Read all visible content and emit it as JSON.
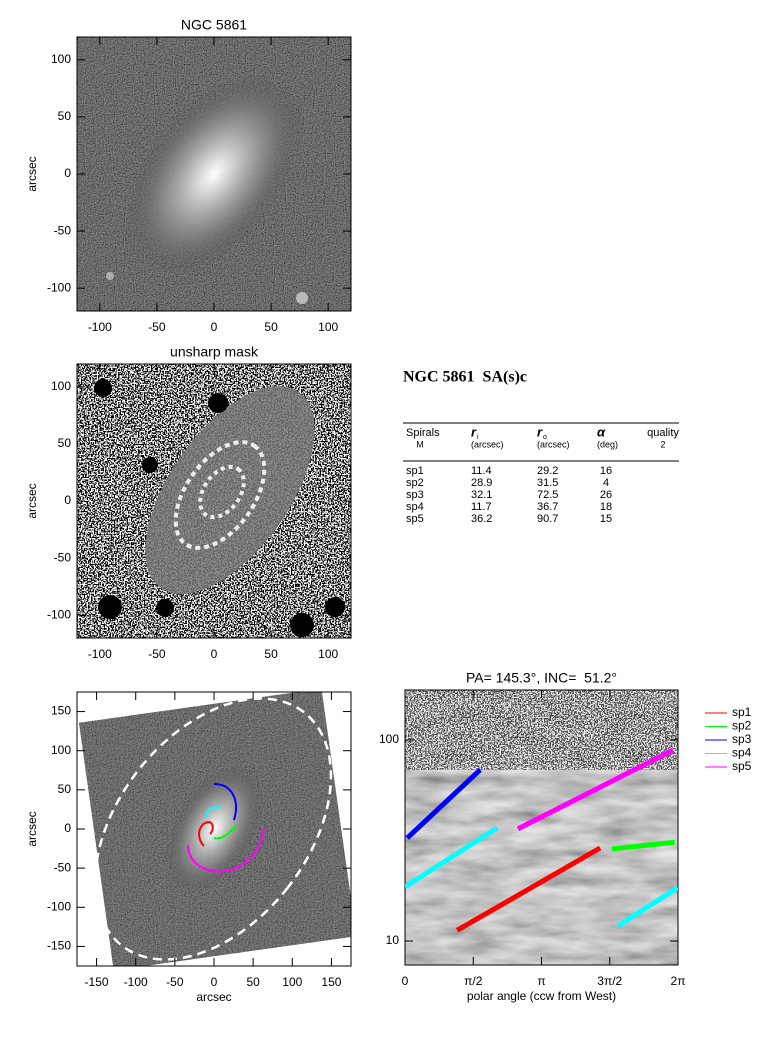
{
  "chart_data": [
    {
      "type": "image",
      "title": "NGC 5861",
      "ylabel": "arcsec",
      "xlim": [
        -120,
        120
      ],
      "ylim": [
        -120,
        120
      ],
      "xticks": [
        -100,
        -50,
        0,
        50,
        100
      ],
      "yticks": [
        -100,
        -50,
        0,
        50,
        100
      ]
    },
    {
      "type": "image",
      "title": "unsharp mask",
      "ylabel": "arcsec",
      "xlim": [
        -120,
        120
      ],
      "ylim": [
        -120,
        120
      ],
      "xticks": [
        -100,
        -50,
        0,
        50,
        100
      ],
      "yticks": [
        -100,
        -50,
        0,
        50,
        100
      ]
    },
    {
      "type": "image",
      "xlabel": "arcsec",
      "ylabel": "arcsec",
      "xlim": [
        -175,
        175
      ],
      "ylim": [
        -175,
        175
      ],
      "xticks": [
        -150,
        -100,
        -50,
        0,
        50,
        100,
        150
      ],
      "yticks": [
        -150,
        -100,
        -50,
        0,
        50,
        100,
        150
      ]
    },
    {
      "type": "line",
      "title": "PA= 145.3°, INC=  51.2°",
      "xlabel": "polar angle (ccw from West)",
      "xlim": [
        0,
        6.2832
      ],
      "ylim": [
        7.6,
        177
      ],
      "log_y": true,
      "legend": "outside right",
      "xticks": [
        {
          "value": 0,
          "label": "0"
        },
        {
          "value": 1.5708,
          "label": "π/2"
        },
        {
          "value": 3.1416,
          "label": "π"
        },
        {
          "value": 4.7124,
          "label": "3π/2"
        },
        {
          "value": 6.2832,
          "label": "2π"
        }
      ],
      "yticks": [
        10,
        100
      ],
      "series": [
        {
          "name": "sp1",
          "color": "#ff0000",
          "x": [
            1.2,
            4.49
          ],
          "values": [
            11.3,
            29.0
          ]
        },
        {
          "name": "sp2",
          "color": "#00ff00",
          "x": [
            4.76,
            6.21
          ],
          "values": [
            28.7,
            31.0
          ]
        },
        {
          "name": "sp3",
          "color": "#0000ff",
          "x": [
            0.05,
            1.73
          ],
          "values": [
            32.5,
            71
          ]
        },
        {
          "name": "sp4",
          "color": "#00ffff",
          "x": [
            0,
            2.12,
            3.5,
            4.9,
            6.28
          ],
          "values": [
            18.6,
            36.5,
            null,
            11.9,
            18.4
          ]
        },
        {
          "name": "sp5",
          "color": "#ff00ff",
          "x": [
            2.6,
            6.17
          ],
          "values": [
            36.1,
            89
          ]
        }
      ]
    }
  ],
  "table": {
    "title": "NGC 5861  SA(s)c",
    "header": [
      {
        "name": "Spirals",
        "sub": "M"
      },
      {
        "symbol": "r",
        "index": "i",
        "unit": "(arcsec)"
      },
      {
        "symbol": "r",
        "index": "o",
        "unit": "(arcsec)"
      },
      {
        "symbol": "α",
        "unit": "(deg)"
      },
      {
        "name": "quality",
        "sub": "2"
      }
    ],
    "rows": [
      [
        "sp1",
        "11.4",
        "29.2",
        "16"
      ],
      [
        "sp2",
        "28.9",
        "31.5",
        "4"
      ],
      [
        "sp3",
        "32.1",
        "72.5",
        "26"
      ],
      [
        "sp4",
        "11.7",
        "36.7",
        "18"
      ],
      [
        "sp5",
        "36.2",
        "90.7",
        "15"
      ]
    ]
  }
}
